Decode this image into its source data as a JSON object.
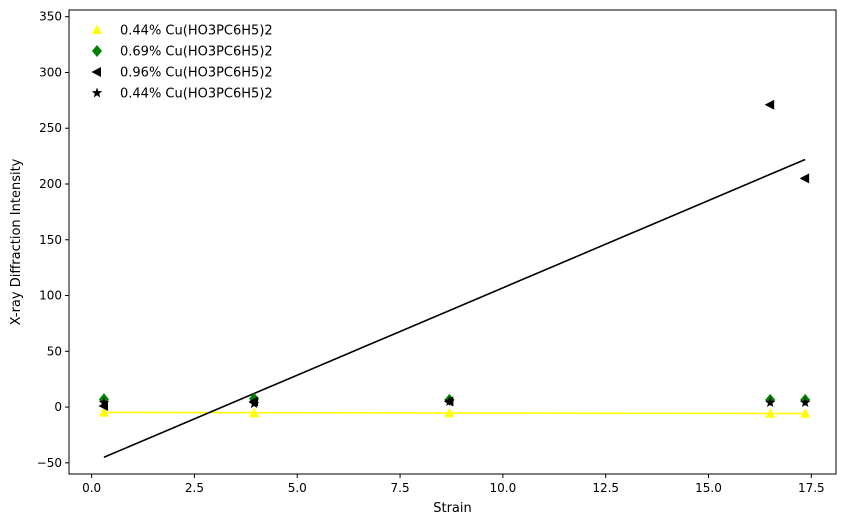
{
  "chart_data": {
    "type": "scatter",
    "title": "",
    "xlabel": "Strain",
    "ylabel": "X-ray Diffraction Intensity",
    "xlim": [
      -0.55,
      18.1
    ],
    "ylim": [
      -60,
      356
    ],
    "x_ticks": [
      0.0,
      2.5,
      5.0,
      7.5,
      10.0,
      12.5,
      15.0,
      17.5
    ],
    "x_tick_labels": [
      "0.0",
      "2.5",
      "5.0",
      "7.5",
      "10.0",
      "12.5",
      "15.0",
      "17.5"
    ],
    "y_ticks": [
      -50,
      0,
      50,
      100,
      150,
      200,
      250,
      300,
      350
    ],
    "y_tick_labels": [
      "−50",
      "0",
      "50",
      "100",
      "150",
      "200",
      "250",
      "300",
      "350"
    ],
    "grid": false,
    "legend_position": "top-left",
    "series": [
      {
        "name": "0.44% Cu(HO3PC6H5)2",
        "marker": "triangle-up",
        "color": "#ffff00",
        "x": [
          0.3,
          3.95,
          8.7,
          16.5,
          17.35
        ],
        "y": [
          -5,
          -5.5,
          -5.5,
          -6,
          -6
        ]
      },
      {
        "name": "0.69% Cu(HO3PC6H5)2",
        "marker": "diamond",
        "color": "#008000",
        "x": [
          0.3,
          3.95,
          8.7,
          16.5,
          17.35
        ],
        "y": [
          7,
          7.5,
          6.5,
          6.5,
          6.5
        ]
      },
      {
        "name": "0.96% Cu(HO3PC6H5)2",
        "marker": "triangle-left",
        "color": "#000000",
        "x": [
          0.3,
          3.95,
          8.7,
          16.5,
          17.35
        ],
        "y": [
          1,
          5,
          5,
          271,
          205
        ]
      },
      {
        "name": "0.44% Cu(HO3PC6H5)2",
        "marker": "star",
        "color": "#000000",
        "x": [
          0.3,
          3.95,
          8.7,
          16.5,
          17.35
        ],
        "y": [
          4,
          3,
          5,
          4,
          4
        ]
      }
    ],
    "fit_lines": [
      {
        "color": "#ffff00",
        "x": [
          0.3,
          17.35
        ],
        "y": [
          -4.8,
          -5.8
        ]
      },
      {
        "color": "#000000",
        "x": [
          0.3,
          17.35
        ],
        "y": [
          -45,
          222
        ]
      }
    ]
  }
}
